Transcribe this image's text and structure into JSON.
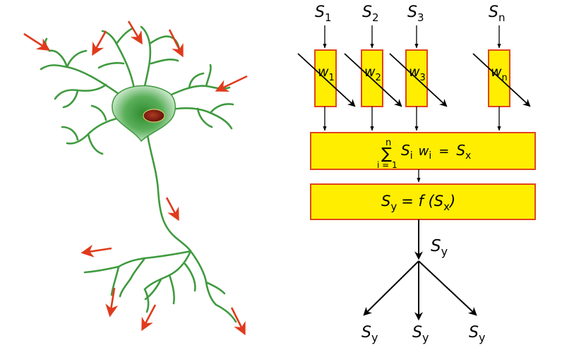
{
  "colors": {
    "dendrite": "#3f9a3f",
    "soma_center": "#2e8b2e",
    "soma_edge": "#cfe8cf",
    "nucleus": "#7a1f12",
    "signal_arrow": "#e03a1c",
    "box_fill": "#ffee00",
    "box_stroke": "#e0451d",
    "flow": "#000000"
  },
  "inputs": [
    {
      "sym": "S",
      "sub": "1"
    },
    {
      "sym": "S",
      "sub": "2"
    },
    {
      "sym": "S",
      "sub": "3"
    },
    {
      "sym": "S",
      "sub": "n"
    }
  ],
  "weights": [
    {
      "sym": "w",
      "sub": "1"
    },
    {
      "sym": "w",
      "sub": "2"
    },
    {
      "sym": "w",
      "sub": "3"
    },
    {
      "sym": "w",
      "sub": "n"
    }
  ],
  "sum_box": {
    "sigma": "∑",
    "upper": "n",
    "lower": "i = 1",
    "s": "S",
    "s_sub": "i",
    "w": "w",
    "w_sub": "i",
    "eq": "=",
    "rs": "S",
    "rs_sub": "x"
  },
  "func_box": {
    "s": "S",
    "s_sub": "y",
    "eq": "= f (",
    "arg": "S",
    "arg_sub": "x",
    "close": ")"
  },
  "output": {
    "sym": "S",
    "sub": "y"
  },
  "branches": [
    {
      "sym": "S",
      "sub": "y"
    },
    {
      "sym": "S",
      "sub": "y"
    },
    {
      "sym": "S",
      "sub": "y"
    }
  ]
}
